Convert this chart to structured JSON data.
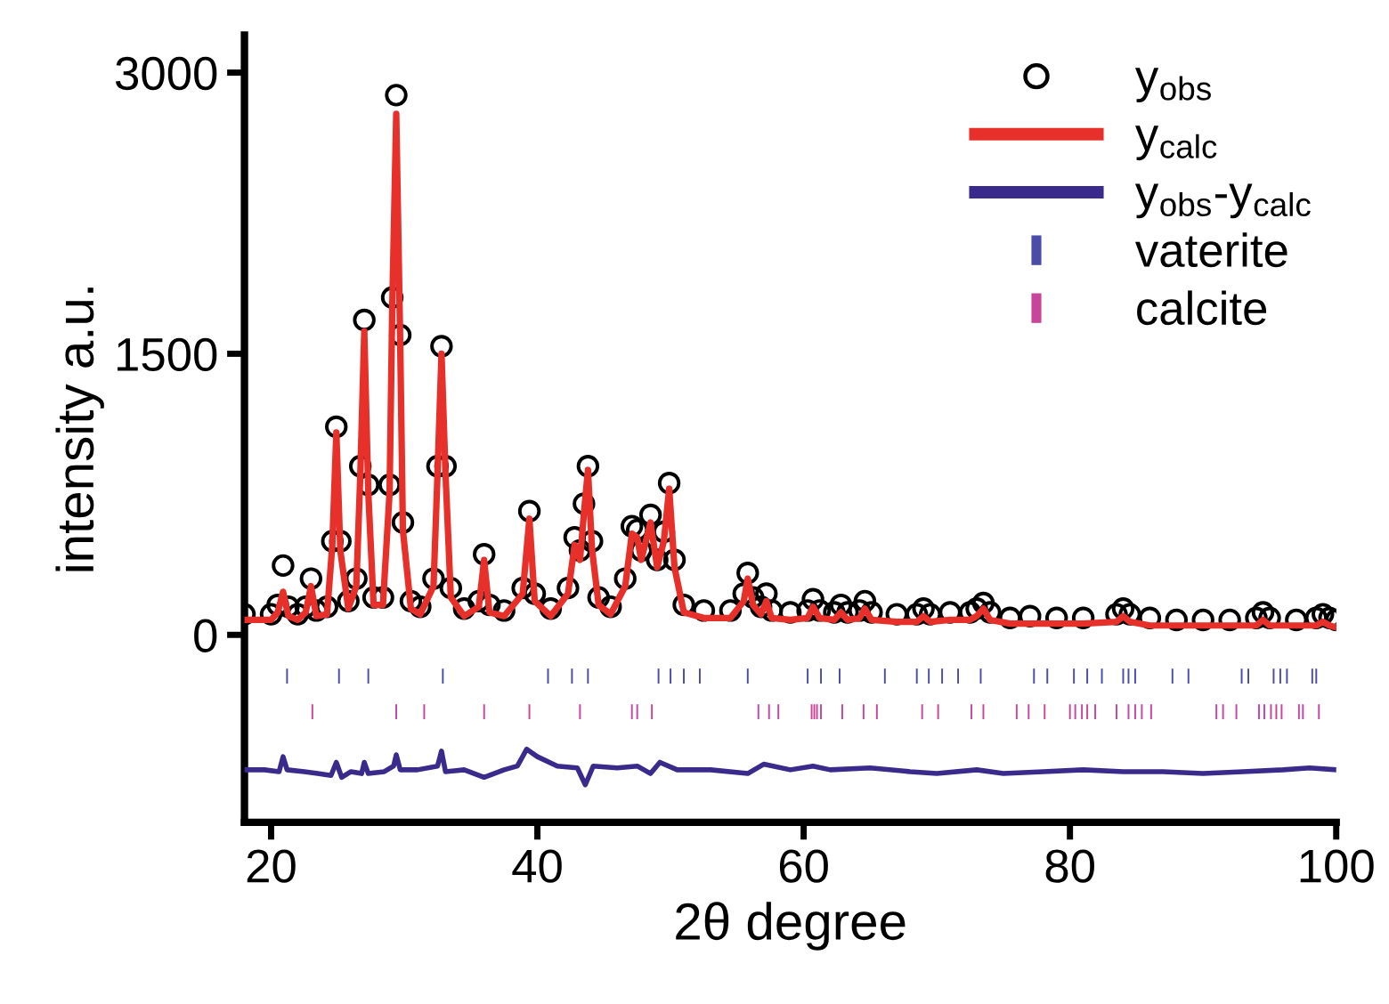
{
  "chart_data": {
    "type": "line",
    "xlabel": "2θ degree",
    "ylabel": "intensity a.u.",
    "xlim": [
      18,
      100
    ],
    "xticks": [
      20,
      40,
      60,
      80,
      100
    ],
    "ylim": [
      -1000,
      3200
    ],
    "yticks": [
      0,
      1500,
      3000
    ],
    "grid": false,
    "legend": "top right",
    "x": [
      18,
      20,
      20.5,
      20.9,
      21.3,
      22,
      22.6,
      23.0,
      23.4,
      24.2,
      24.6,
      24.9,
      25.2,
      25.8,
      26.4,
      26.7,
      27.0,
      27.3,
      27.7,
      28.4,
      28.9,
      29.1,
      29.4,
      29.7,
      29.9,
      30.5,
      31.2,
      32.2,
      32.5,
      32.8,
      33.1,
      33.5,
      34.5,
      35.6,
      36.0,
      36.4,
      37.5,
      38.9,
      39.4,
      39.8,
      41.0,
      42.3,
      42.8,
      43.2,
      43.5,
      43.8,
      44.1,
      44.6,
      45.5,
      46.6,
      47.1,
      47.5,
      47.8,
      48.5,
      49.0,
      49.5,
      49.9,
      50.3,
      51.0,
      52.5,
      54.5,
      55.5,
      55.8,
      56.2,
      56.8,
      57.2,
      57.6,
      59.0,
      60.3,
      60.7,
      61.2,
      62.3,
      62.8,
      63.3,
      64.2,
      64.6,
      65.1,
      67.0,
      68.5,
      69.0,
      69.5,
      71.0,
      72.5,
      73.0,
      73.5,
      74.0,
      75.5,
      77.0,
      79.0,
      81.0,
      83.5,
      84.0,
      84.5,
      86.0,
      88.0,
      90.0,
      92.0,
      94.0,
      94.5,
      95.0,
      97.0,
      98.5,
      99.0,
      99.5,
      100
    ],
    "series": [
      {
        "name": "y$_{obs}$",
        "type": "scatter",
        "marker": "circle",
        "color": "#000000",
        "values": [
          110,
          110,
          160,
          370,
          150,
          110,
          150,
          300,
          130,
          150,
          500,
          1110,
          500,
          180,
          300,
          900,
          1680,
          800,
          200,
          200,
          800,
          1800,
          2880,
          1600,
          600,
          180,
          150,
          300,
          900,
          1540,
          900,
          250,
          140,
          180,
          430,
          160,
          130,
          250,
          660,
          220,
          140,
          250,
          520,
          450,
          700,
          900,
          500,
          200,
          150,
          300,
          580,
          560,
          450,
          640,
          400,
          550,
          810,
          400,
          160,
          130,
          130,
          220,
          330,
          200,
          150,
          220,
          130,
          120,
          130,
          190,
          130,
          120,
          160,
          120,
          130,
          180,
          120,
          110,
          110,
          140,
          110,
          120,
          120,
          140,
          170,
          120,
          90,
          100,
          90,
          90,
          110,
          140,
          110,
          90,
          80,
          80,
          80,
          90,
          120,
          90,
          80,
          90,
          110,
          90,
          80
        ]
      },
      {
        "name": "y$_{calc}$",
        "color": "#e8302a",
        "values": [
          80,
          80,
          120,
          230,
          100,
          80,
          120,
          260,
          100,
          110,
          480,
          1080,
          450,
          140,
          260,
          850,
          1620,
          760,
          160,
          160,
          760,
          1750,
          2780,
          1550,
          560,
          140,
          110,
          260,
          860,
          1500,
          860,
          200,
          100,
          150,
          400,
          120,
          100,
          220,
          620,
          180,
          100,
          220,
          480,
          400,
          650,
          880,
          460,
          160,
          110,
          260,
          540,
          520,
          400,
          600,
          360,
          500,
          780,
          360,
          120,
          90,
          90,
          180,
          300,
          160,
          110,
          180,
          90,
          80,
          90,
          150,
          90,
          80,
          120,
          80,
          90,
          140,
          80,
          70,
          70,
          100,
          70,
          80,
          80,
          100,
          140,
          80,
          60,
          60,
          60,
          60,
          70,
          100,
          70,
          50,
          50,
          50,
          50,
          50,
          80,
          50,
          50,
          50,
          70,
          50,
          40
        ]
      },
      {
        "name": "y$_{obs}$-y$_{calc}$",
        "color": "#3a2a8c",
        "x": [
          18,
          19.5,
          20.6,
          20.9,
          21.2,
          22.5,
          23.5,
          24.5,
          24.9,
          25.3,
          26,
          26.8,
          27.0,
          27.3,
          28.5,
          29.2,
          29.4,
          29.7,
          31,
          32.5,
          32.8,
          33.1,
          34.5,
          36,
          37.5,
          38.5,
          39.2,
          40,
          41.5,
          43,
          43.6,
          44.2,
          46,
          47.5,
          48.5,
          49.2,
          50.5,
          53,
          55.8,
          57,
          59,
          60.7,
          62,
          65,
          68,
          70,
          73,
          75,
          78,
          81,
          84,
          87,
          90,
          93,
          96,
          98,
          100
        ],
        "values": [
          -720,
          -720,
          -730,
          -650,
          -720,
          -730,
          -740,
          -750,
          -680,
          -760,
          -730,
          -740,
          -680,
          -740,
          -730,
          -700,
          -640,
          -720,
          -720,
          -700,
          -620,
          -730,
          -720,
          -760,
          -720,
          -700,
          -610,
          -650,
          -700,
          -710,
          -800,
          -700,
          -710,
          -700,
          -740,
          -680,
          -720,
          -720,
          -740,
          -690,
          -720,
          -700,
          -720,
          -710,
          -730,
          -740,
          -720,
          -740,
          -730,
          -720,
          -730,
          -730,
          -740,
          -730,
          -720,
          -710,
          -720
        ]
      },
      {
        "name": "vaterite",
        "type": "bar",
        "color": "#4b4ba8",
        "x": [
          21.2,
          25.1,
          27.3,
          32.9,
          40.8,
          42.6,
          43.8,
          49.1,
          50.0,
          51.0,
          52.2,
          55.8,
          60.3,
          61.3,
          62.7,
          66.1,
          68.5,
          69.4,
          70.4,
          71.6,
          73.3,
          77.3,
          78.3,
          80.3,
          81.3,
          82.4,
          84.0,
          84.4,
          84.9,
          87.7,
          88.9,
          92.9,
          93.4,
          95.3,
          95.8,
          96.3,
          98.2,
          98.5
        ],
        "base": [
          -260,
          -260,
          -260,
          -260,
          -260,
          -260,
          -260,
          -260,
          -260,
          -260,
          -260,
          -260,
          -260,
          -260,
          -260,
          -260,
          -260,
          -260,
          -260,
          -260,
          -260,
          -260,
          -260,
          -260,
          -260,
          -260,
          -260,
          -260,
          -260,
          -260,
          -260,
          -260,
          -260,
          -260,
          -260,
          -260,
          -260,
          -260
        ],
        "values": [
          80,
          80,
          80,
          80,
          80,
          80,
          80,
          80,
          80,
          80,
          80,
          80,
          80,
          80,
          80,
          80,
          80,
          80,
          80,
          80,
          80,
          80,
          80,
          80,
          80,
          80,
          80,
          80,
          80,
          80,
          80,
          80,
          80,
          80,
          80,
          80,
          80,
          80
        ]
      },
      {
        "name": "calcite",
        "type": "bar",
        "color": "#c8459c",
        "x": [
          23.1,
          29.4,
          31.5,
          36.0,
          39.4,
          43.2,
          47.1,
          47.5,
          48.6,
          56.6,
          57.4,
          58.1,
          60.6,
          60.8,
          61.0,
          61.3,
          62.9,
          64.5,
          65.5,
          68.9,
          70.1,
          72.6,
          73.5,
          76.0,
          76.9,
          78.1,
          80.0,
          80.4,
          80.9,
          81.3,
          81.9,
          83.5,
          84.4,
          84.9,
          85.4,
          86.1,
          91.0,
          91.5,
          92.5,
          94.2,
          94.6,
          95.1,
          95.5,
          95.9,
          97.2,
          97.5,
          98.7
        ],
        "base": [
          -450,
          -450,
          -450,
          -450,
          -450,
          -450,
          -450,
          -450,
          -450,
          -450,
          -450,
          -450,
          -450,
          -450,
          -450,
          -450,
          -450,
          -450,
          -450,
          -450,
          -450,
          -450,
          -450,
          -450,
          -450,
          -450,
          -450,
          -450,
          -450,
          -450,
          -450,
          -450,
          -450,
          -450,
          -450,
          -450,
          -450,
          -450,
          -450,
          -450,
          -450,
          -450,
          -450,
          -450,
          -450,
          -450,
          -450
        ],
        "values": [
          80,
          80,
          80,
          80,
          80,
          80,
          80,
          80,
          80,
          80,
          80,
          80,
          80,
          80,
          80,
          80,
          80,
          80,
          80,
          80,
          80,
          80,
          80,
          80,
          80,
          80,
          80,
          80,
          80,
          80,
          80,
          80,
          80,
          80,
          80,
          80,
          80,
          80,
          80,
          80,
          80,
          80,
          80,
          80,
          80,
          80,
          80
        ]
      }
    ]
  }
}
